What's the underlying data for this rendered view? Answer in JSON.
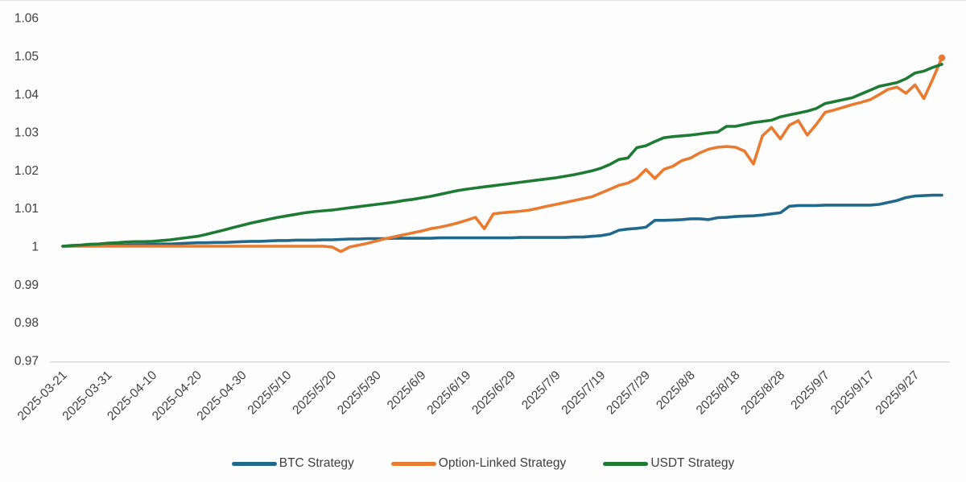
{
  "chart_data": {
    "type": "line",
    "title": "",
    "xlabel": "",
    "ylabel": "",
    "grid": "off",
    "legend_position": "bottom-center",
    "axis_color": "#d9d9d9",
    "label_color": "#404040",
    "ylim": [
      0.97,
      1.06
    ],
    "y_tick_values": [
      1.06,
      1.05,
      1.04,
      1.03,
      1.02,
      1.01,
      1,
      0.99,
      0.98,
      0.97
    ],
    "y_tick_labels": [
      "1.06",
      "1.05",
      "1.04",
      "1.03",
      "1.02",
      "1.01",
      "1",
      "0.99",
      "0.98",
      "0.97"
    ],
    "x_unit": "days since 2025-03-21",
    "x_range_days": [
      0,
      196
    ],
    "x_tick_days": [
      0,
      10,
      20,
      30,
      40,
      50,
      60,
      70,
      80,
      90,
      100,
      110,
      120,
      130,
      140,
      150,
      160,
      170,
      180,
      190
    ],
    "x_tick_labels": [
      "2025-03-21",
      "2025-03-31",
      "2025-04-10",
      "2025-04-20",
      "2025-04-30",
      "2025/5/10",
      "2025/5/20",
      "2025/5/30",
      "2025/6/9",
      "2025/6/19",
      "2025/6/29",
      "2025/7/9",
      "2025/7/19",
      "2025/7/29",
      "2025/8/8",
      "2025/8/18",
      "2025/8/28",
      "2025/9/7",
      "2025/9/17",
      "2025/9/27"
    ],
    "x": [
      0,
      2,
      4,
      6,
      8,
      10,
      12,
      14,
      16,
      18,
      20,
      22,
      24,
      26,
      28,
      30,
      32,
      34,
      36,
      38,
      40,
      42,
      44,
      46,
      48,
      50,
      52,
      54,
      56,
      58,
      60,
      62,
      64,
      66,
      68,
      70,
      72,
      74,
      76,
      78,
      80,
      82,
      84,
      86,
      88,
      90,
      92,
      94,
      96,
      98,
      100,
      102,
      104,
      106,
      108,
      110,
      112,
      114,
      116,
      118,
      120,
      122,
      124,
      126,
      128,
      130,
      132,
      134,
      136,
      138,
      140,
      142,
      144,
      146,
      148,
      150,
      152,
      154,
      156,
      158,
      160,
      162,
      164,
      166,
      168,
      170,
      172,
      174,
      176,
      178,
      180,
      182,
      184,
      186,
      188,
      190,
      192,
      194,
      196
    ],
    "series": [
      {
        "name": "BTC Strategy",
        "color": "#21698b",
        "end_marker": false,
        "values": [
          1.0,
          1.0,
          1.0001,
          1.0001,
          1.0002,
          1.0002,
          1.0003,
          1.0003,
          1.0004,
          1.0004,
          1.0005,
          1.0006,
          1.0006,
          1.0007,
          1.0008,
          1.0009,
          1.0009,
          1.001,
          1.001,
          1.0011,
          1.0012,
          1.0013,
          1.0013,
          1.0014,
          1.0015,
          1.0015,
          1.0016,
          1.0016,
          1.0016,
          1.0017,
          1.0017,
          1.0018,
          1.0019,
          1.0019,
          1.002,
          1.002,
          1.002,
          1.0021,
          1.0021,
          1.0021,
          1.0021,
          1.0021,
          1.0022,
          1.0022,
          1.0022,
          1.0022,
          1.0022,
          1.0022,
          1.0022,
          1.0022,
          1.0022,
          1.0023,
          1.0023,
          1.0023,
          1.0023,
          1.0023,
          1.0023,
          1.0024,
          1.0024,
          1.0026,
          1.0028,
          1.0032,
          1.0042,
          1.0045,
          1.0047,
          1.005,
          1.0068,
          1.0068,
          1.0069,
          1.007,
          1.0072,
          1.0072,
          1.007,
          1.0075,
          1.0076,
          1.0078,
          1.0079,
          1.008,
          1.0082,
          1.0085,
          1.0088,
          1.0105,
          1.0107,
          1.0107,
          1.0107,
          1.0108,
          1.0108,
          1.0108,
          1.0108,
          1.0108,
          1.0108,
          1.011,
          1.0115,
          1.012,
          1.0128,
          1.0132,
          1.0133,
          1.0134,
          1.0134
        ]
      },
      {
        "name": "Option-Linked Strategy",
        "color": "#e87b30",
        "end_marker": true,
        "values": [
          1.0,
          1.0,
          1.0,
          1.0,
          1.0,
          1.0,
          1.0,
          1.0,
          1.0,
          1.0,
          1.0,
          1.0,
          1.0,
          1.0,
          1.0,
          1.0,
          1.0,
          1.0,
          1.0,
          1.0,
          1.0,
          1.0,
          1.0,
          1.0,
          1.0,
          1.0,
          1.0,
          1.0,
          1.0,
          1.0,
          0.9998,
          0.9986,
          0.9998,
          1.0003,
          1.0008,
          1.0014,
          1.002,
          1.0025,
          1.003,
          1.0035,
          1.004,
          1.0046,
          1.005,
          1.0055,
          1.0061,
          1.0068,
          1.0076,
          1.0046,
          1.0085,
          1.0088,
          1.009,
          1.0092,
          1.0095,
          1.01,
          1.0105,
          1.011,
          1.0115,
          1.012,
          1.0125,
          1.013,
          1.014,
          1.015,
          1.016,
          1.0166,
          1.0178,
          1.0202,
          1.0178,
          1.0202,
          1.021,
          1.0225,
          1.0232,
          1.0245,
          1.0255,
          1.026,
          1.0262,
          1.026,
          1.025,
          1.0216,
          1.029,
          1.0312,
          1.0282,
          1.0318,
          1.033,
          1.0292,
          1.032,
          1.0352,
          1.0358,
          1.0365,
          1.0372,
          1.0378,
          1.0385,
          1.0398,
          1.0412,
          1.0418,
          1.0402,
          1.0424,
          1.0388,
          1.044,
          1.0495
        ]
      },
      {
        "name": "USDT Strategy",
        "color": "#1e7b34",
        "end_marker": false,
        "values": [
          1.0,
          1.0002,
          1.0003,
          1.0005,
          1.0006,
          1.0008,
          1.0009,
          1.0011,
          1.0012,
          1.0012,
          1.0013,
          1.0015,
          1.0017,
          1.002,
          1.0023,
          1.0026,
          1.0031,
          1.0037,
          1.0043,
          1.0049,
          1.0055,
          1.0061,
          1.0066,
          1.0071,
          1.0076,
          1.008,
          1.0084,
          1.0088,
          1.0091,
          1.0093,
          1.0095,
          1.0098,
          1.0101,
          1.0104,
          1.0107,
          1.011,
          1.0113,
          1.0116,
          1.012,
          1.0123,
          1.0127,
          1.0131,
          1.0136,
          1.0141,
          1.0146,
          1.015,
          1.0153,
          1.0156,
          1.0159,
          1.0162,
          1.0165,
          1.0168,
          1.0171,
          1.0174,
          1.0177,
          1.018,
          1.0184,
          1.0188,
          1.0193,
          1.0198,
          1.0205,
          1.0215,
          1.0228,
          1.0232,
          1.0259,
          1.0264,
          1.0275,
          1.0285,
          1.0288,
          1.029,
          1.0292,
          1.0295,
          1.0298,
          1.03,
          1.0315,
          1.0315,
          1.032,
          1.0325,
          1.0328,
          1.0331,
          1.034,
          1.0345,
          1.035,
          1.0355,
          1.0362,
          1.0375,
          1.038,
          1.0385,
          1.039,
          1.04,
          1.041,
          1.042,
          1.0425,
          1.043,
          1.044,
          1.0455,
          1.046,
          1.047,
          1.0478
        ]
      }
    ]
  }
}
